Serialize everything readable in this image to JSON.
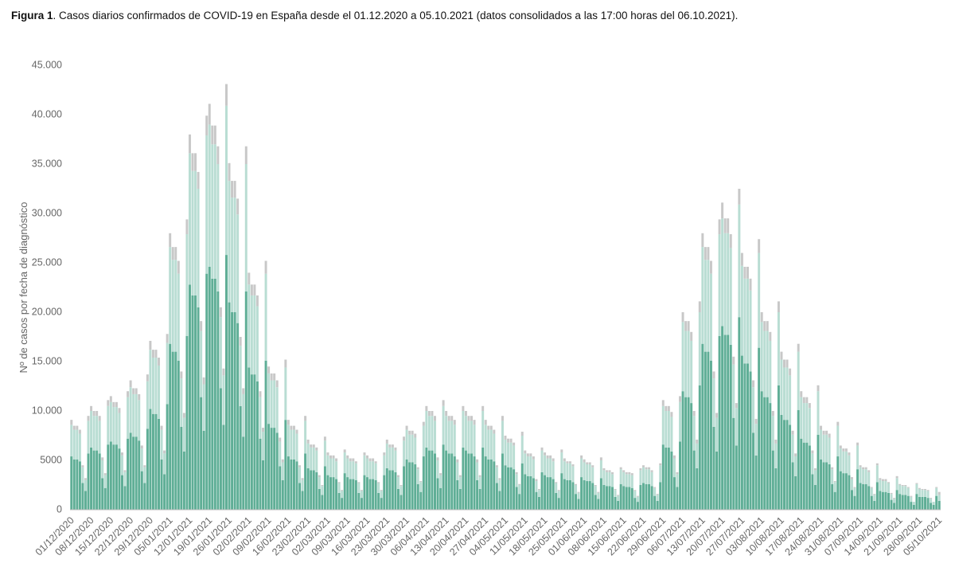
{
  "chart_data": {
    "type": "stacked_bar",
    "figure_label": "Figura 1",
    "title": ". Casos diarios confirmados de COVID-19 en España desde el 01.12.2020 a 05.10.2021 (datos consolidados a las 17:00 horas del 06.10.2021).",
    "y_label": "Nº de casos por fecha de diagnóstico",
    "ylim": [
      0,
      45000
    ],
    "yticks": [
      0,
      5000,
      {
        "value": 10000,
        "label": "10.000"
      },
      {
        "value": 15000,
        "label": "15.000"
      },
      {
        "value": 20000,
        "label": "20.000"
      },
      {
        "value": 25000,
        "label": "25.000"
      },
      {
        "value": 30000,
        "label": "30.000"
      },
      {
        "value": 35000,
        "label": "35.000"
      },
      {
        "value": 40000,
        "label": "40.000"
      },
      {
        "value": 45000,
        "label": "45.000"
      }
    ],
    "grid": false,
    "categories": [
      "01/12/2020",
      null,
      null,
      null,
      null,
      null,
      null,
      "08/12/2020",
      null,
      null,
      null,
      null,
      null,
      null,
      "15/12/2020",
      null,
      null,
      null,
      null,
      null,
      null,
      "22/12/2020",
      null,
      null,
      null,
      null,
      null,
      null,
      "29/12/2020",
      null,
      null,
      null,
      null,
      null,
      null,
      "05/01/2021",
      null,
      null,
      null,
      null,
      null,
      null,
      "12/01/2021",
      null,
      null,
      null,
      null,
      null,
      null,
      "19/01/2021",
      null,
      null,
      null,
      null,
      null,
      null,
      "26/01/2021",
      null,
      null,
      null,
      null,
      null,
      null,
      "02/02/2021",
      null,
      null,
      null,
      null,
      null,
      null,
      "09/02/2021",
      null,
      null,
      null,
      null,
      null,
      null,
      "16/02/2021",
      null,
      null,
      null,
      null,
      null,
      null,
      "23/02/2021",
      null,
      null,
      null,
      null,
      null,
      null,
      "02/03/2021",
      null,
      null,
      null,
      null,
      null,
      null,
      "09/03/2021",
      null,
      null,
      null,
      null,
      null,
      null,
      "16/03/2021",
      null,
      null,
      null,
      null,
      null,
      null,
      "23/03/2021",
      null,
      null,
      null,
      null,
      null,
      null,
      "30/03/2021",
      null,
      null,
      null,
      null,
      null,
      null,
      "06/04/2021",
      null,
      null,
      null,
      null,
      null,
      null,
      "13/04/2021",
      null,
      null,
      null,
      null,
      null,
      null,
      "20/04/2021",
      null,
      null,
      null,
      null,
      null,
      null,
      "27/04/2021",
      null,
      null,
      null,
      null,
      null,
      null,
      "04/05/2021",
      null,
      null,
      null,
      null,
      null,
      null,
      "11/05/2021",
      null,
      null,
      null,
      null,
      null,
      null,
      "18/05/2021",
      null,
      null,
      null,
      null,
      null,
      null,
      "25/05/2021",
      null,
      null,
      null,
      null,
      null,
      null,
      "01/06/2021",
      null,
      null,
      null,
      null,
      null,
      null,
      "08/06/2021",
      null,
      null,
      null,
      null,
      null,
      null,
      "15/06/2021",
      null,
      null,
      null,
      null,
      null,
      null,
      "22/06/2021",
      null,
      null,
      null,
      null,
      null,
      null,
      "29/06/2021",
      null,
      null,
      null,
      null,
      null,
      null,
      "06/07/2021",
      null,
      null,
      null,
      null,
      null,
      null,
      "13/07/2021",
      null,
      null,
      null,
      null,
      null,
      null,
      "20/07/2021",
      null,
      null,
      null,
      null,
      null,
      null,
      "27/07/2021",
      null,
      null,
      null,
      null,
      null,
      null,
      "03/08/2021",
      null,
      null,
      null,
      null,
      null,
      null,
      "10/08/2021",
      null,
      null,
      null,
      null,
      null,
      null,
      "17/08/2021",
      null,
      null,
      null,
      null,
      null,
      null,
      "24/08/2021",
      null,
      null,
      null,
      null,
      null,
      null,
      "31/08/2021",
      null,
      null,
      null,
      null,
      null,
      null,
      "07/09/2021",
      null,
      null,
      null,
      null,
      null,
      null,
      "14/09/2021",
      null,
      null,
      null,
      null,
      null,
      null,
      "21/09/2021",
      null,
      null,
      null,
      null,
      null,
      null,
      "28/09/2021",
      null,
      null,
      null,
      null,
      null,
      null,
      "05/10/2021"
    ],
    "series": [
      {
        "color": "#5fae96",
        "values": [
          5400,
          5100,
          5100,
          4900,
          2700,
          1900,
          5700,
          6300,
          6000,
          6000,
          5700,
          3200,
          2200,
          6600,
          6900,
          6600,
          6600,
          6200,
          3500,
          2400,
          7200,
          7800,
          7400,
          7400,
          7000,
          3900,
          2700,
          8200,
          10200,
          9700,
          9700,
          9200,
          5100,
          3600,
          10700,
          16800,
          16000,
          16000,
          15100,
          8400,
          5900,
          17600,
          22800,
          21700,
          21700,
          20500,
          11400,
          8000,
          23900,
          24600,
          23400,
          23400,
          22100,
          12300,
          8600,
          25800,
          21000,
          20000,
          20000,
          18900,
          10500,
          7400,
          22100,
          14400,
          13700,
          13700,
          13000,
          7200,
          5000,
          15100,
          8700,
          8300,
          8300,
          7800,
          4400,
          3000,
          9100,
          5400,
          5100,
          5100,
          4900,
          2700,
          1900,
          5700,
          4200,
          4000,
          4000,
          3800,
          2100,
          1500,
          4400,
          3500,
          3300,
          3300,
          3100,
          1700,
          1200,
          3700,
          3300,
          3100,
          3100,
          3000,
          1700,
          1200,
          3500,
          3300,
          3100,
          3100,
          3000,
          1700,
          1200,
          3500,
          4200,
          4000,
          4000,
          3800,
          2100,
          1500,
          4400,
          5100,
          4800,
          4800,
          4600,
          2600,
          1800,
          5400,
          6300,
          6000,
          6000,
          5700,
          3200,
          2200,
          6600,
          6000,
          5700,
          5700,
          5400,
          3000,
          2100,
          6300,
          6000,
          5700,
          5700,
          5400,
          3000,
          2100,
          6300,
          5400,
          5100,
          5100,
          4900,
          2700,
          1900,
          5700,
          4500,
          4300,
          4300,
          4100,
          2300,
          1600,
          4700,
          3600,
          3400,
          3400,
          3200,
          1800,
          1300,
          3800,
          3500,
          3300,
          3300,
          3100,
          1700,
          1200,
          3700,
          3100,
          3000,
          3000,
          2800,
          1600,
          1100,
          3300,
          3000,
          2900,
          2900,
          2700,
          1500,
          1100,
          3200,
          2500,
          2400,
          2400,
          2300,
          1300,
          900,
          2600,
          2400,
          2300,
          2300,
          2200,
          1200,
          800,
          2500,
          2700,
          2600,
          2600,
          2400,
          1400,
          900,
          2800,
          6600,
          6300,
          6300,
          5900,
          3300,
          2300,
          6900,
          12000,
          11400,
          11400,
          10800,
          6000,
          4200,
          12600,
          16800,
          16000,
          16000,
          15100,
          8400,
          5900,
          17600,
          18600,
          17700,
          17700,
          16700,
          9300,
          6500,
          19500,
          15600,
          14800,
          14800,
          14000,
          7800,
          5500,
          16400,
          12000,
          11400,
          11400,
          10800,
          6000,
          4200,
          12600,
          9600,
          9100,
          9100,
          8600,
          4800,
          3400,
          10100,
          7200,
          6800,
          6800,
          6500,
          3600,
          2500,
          7600,
          5100,
          4800,
          4800,
          4600,
          2600,
          1800,
          5400,
          3900,
          3700,
          3700,
          3500,
          2000,
          1400,
          4100,
          2700,
          2600,
          2600,
          2400,
          1400,
          900,
          2800,
          1900,
          1800,
          1800,
          1700,
          1000,
          700,
          2000,
          1600,
          1500,
          1500,
          1400,
          800,
          500,
          1600,
          1300,
          1300,
          1300,
          1200,
          700,
          500,
          1400,
          900
        ]
      },
      {
        "color": "#b9ddd3",
        "values": [
          3200,
          3000,
          3000,
          2800,
          1600,
          1100,
          3300,
          3700,
          3500,
          3500,
          3300,
          1800,
          1300,
          3900,
          4000,
          3800,
          3800,
          3600,
          2000,
          1400,
          4200,
          4600,
          4300,
          4300,
          4100,
          2300,
          1600,
          4800,
          6000,
          5700,
          5700,
          5400,
          3000,
          2100,
          6200,
          9800,
          9300,
          9300,
          8800,
          4900,
          3400,
          10300,
          13300,
          12600,
          12600,
          12000,
          6700,
          4700,
          14000,
          14400,
          13600,
          13600,
          12900,
          7200,
          5000,
          15100,
          12300,
          11600,
          11600,
          11000,
          6100,
          4300,
          12900,
          8400,
          8000,
          8000,
          7600,
          4200,
          2900,
          8800,
          5100,
          4800,
          4800,
          4600,
          2500,
          1800,
          5300,
          3200,
          3000,
          3000,
          2800,
          1600,
          1100,
          3300,
          2500,
          2300,
          2300,
          2200,
          1200,
          900,
          2600,
          2000,
          1900,
          1900,
          1800,
          1000,
          700,
          2100,
          1900,
          1800,
          1800,
          1700,
          1000,
          700,
          2000,
          1900,
          1800,
          1800,
          1700,
          1000,
          700,
          2000,
          2500,
          2300,
          2300,
          2200,
          1200,
          900,
          2600,
          3000,
          2800,
          2800,
          2700,
          1500,
          1000,
          3100,
          3700,
          3500,
          3500,
          3300,
          1800,
          1300,
          3900,
          3500,
          3300,
          3300,
          3200,
          1800,
          1200,
          3700,
          3500,
          3300,
          3300,
          3200,
          1800,
          1200,
          3700,
          3200,
          3000,
          3000,
          2800,
          1600,
          1100,
          3300,
          2600,
          2500,
          2500,
          2400,
          1300,
          900,
          2800,
          2100,
          2000,
          2000,
          1900,
          1100,
          700,
          2200,
          2000,
          1900,
          1900,
          1800,
          1000,
          700,
          2100,
          1800,
          1700,
          1700,
          1600,
          900,
          600,
          1900,
          1800,
          1700,
          1700,
          1600,
          900,
          600,
          1800,
          1500,
          1400,
          1400,
          1300,
          700,
          500,
          1500,
          1400,
          1300,
          1300,
          1300,
          700,
          500,
          1500,
          1600,
          1500,
          1500,
          1400,
          800,
          600,
          1700,
          3900,
          3700,
          3700,
          3500,
          1900,
          1300,
          4000,
          7000,
          6700,
          6700,
          6300,
          3500,
          2500,
          7400,
          9800,
          9300,
          9300,
          8800,
          4900,
          3400,
          10300,
          10900,
          10300,
          10300,
          9800,
          5400,
          3800,
          11400,
          9100,
          8600,
          8600,
          8200,
          4600,
          3200,
          9600,
          7000,
          6700,
          6700,
          6300,
          3500,
          2500,
          7400,
          5600,
          5300,
          5300,
          5000,
          2800,
          2000,
          5900,
          4200,
          4000,
          4000,
          3800,
          2100,
          1500,
          4400,
          3000,
          2800,
          2800,
          2700,
          1500,
          1000,
          3100,
          2300,
          2200,
          2200,
          2000,
          1100,
          800,
          2400,
          1600,
          1500,
          1500,
          1400,
          800,
          600,
          1700,
          1100,
          1100,
          1100,
          1000,
          600,
          400,
          1200,
          900,
          900,
          900,
          800,
          500,
          300,
          1000,
          800,
          700,
          700,
          700,
          400,
          300,
          800,
          600
        ]
      },
      {
        "color": "#c8c8c8",
        "values": [
          500,
          400,
          400,
          400,
          200,
          200,
          500,
          500,
          500,
          500,
          500,
          300,
          200,
          600,
          600,
          500,
          500,
          500,
          300,
          200,
          600,
          700,
          600,
          600,
          600,
          300,
          200,
          700,
          900,
          800,
          800,
          800,
          400,
          300,
          900,
          1400,
          1300,
          1300,
          1300,
          700,
          500,
          1500,
          1900,
          1800,
          1800,
          1700,
          1000,
          700,
          2000,
          2100,
          1900,
          1900,
          1800,
          1000,
          700,
          2200,
          1800,
          1700,
          1700,
          1600,
          900,
          600,
          1800,
          1200,
          1100,
          1100,
          1100,
          600,
          400,
          1300,
          700,
          700,
          700,
          700,
          400,
          300,
          800,
          500,
          400,
          400,
          400,
          200,
          200,
          500,
          400,
          300,
          300,
          300,
          200,
          100,
          400,
          300,
          300,
          300,
          300,
          100,
          100,
          300,
          300,
          300,
          300,
          200,
          100,
          100,
          300,
          300,
          300,
          300,
          200,
          100,
          100,
          300,
          400,
          300,
          300,
          300,
          200,
          100,
          400,
          400,
          400,
          400,
          400,
          200,
          100,
          400,
          500,
          500,
          500,
          500,
          300,
          200,
          600,
          500,
          500,
          500,
          500,
          300,
          200,
          500,
          500,
          500,
          500,
          500,
          300,
          200,
          500,
          500,
          400,
          400,
          400,
          200,
          200,
          500,
          400,
          400,
          400,
          300,
          200,
          100,
          400,
          300,
          300,
          300,
          300,
          200,
          100,
          300,
          300,
          300,
          300,
          300,
          100,
          100,
          300,
          300,
          200,
          200,
          200,
          100,
          100,
          300,
          300,
          200,
          200,
          200,
          100,
          100,
          300,
          200,
          200,
          200,
          200,
          100,
          100,
          200,
          200,
          200,
          200,
          200,
          100,
          100,
          200,
          200,
          200,
          200,
          200,
          100,
          100,
          200,
          600,
          500,
          500,
          500,
          300,
          200,
          600,
          1000,
          1000,
          1000,
          900,
          500,
          400,
          1100,
          1400,
          1300,
          1300,
          1300,
          700,
          500,
          1500,
          1600,
          1500,
          1500,
          1400,
          800,
          500,
          1600,
          1300,
          1200,
          1200,
          1200,
          700,
          500,
          1400,
          1000,
          1000,
          1000,
          900,
          500,
          400,
          1100,
          800,
          800,
          800,
          700,
          400,
          300,
          800,
          600,
          600,
          600,
          500,
          300,
          200,
          600,
          400,
          400,
          400,
          400,
          200,
          100,
          400,
          300,
          300,
          300,
          300,
          200,
          100,
          300,
          200,
          200,
          200,
          200,
          100,
          100,
          200,
          200,
          200,
          200,
          100,
          100,
          100,
          200,
          100,
          100,
          100,
          100,
          100,
          0,
          100,
          100,
          100,
          100,
          100,
          100,
          0,
          100,
          300
        ]
      }
    ]
  }
}
